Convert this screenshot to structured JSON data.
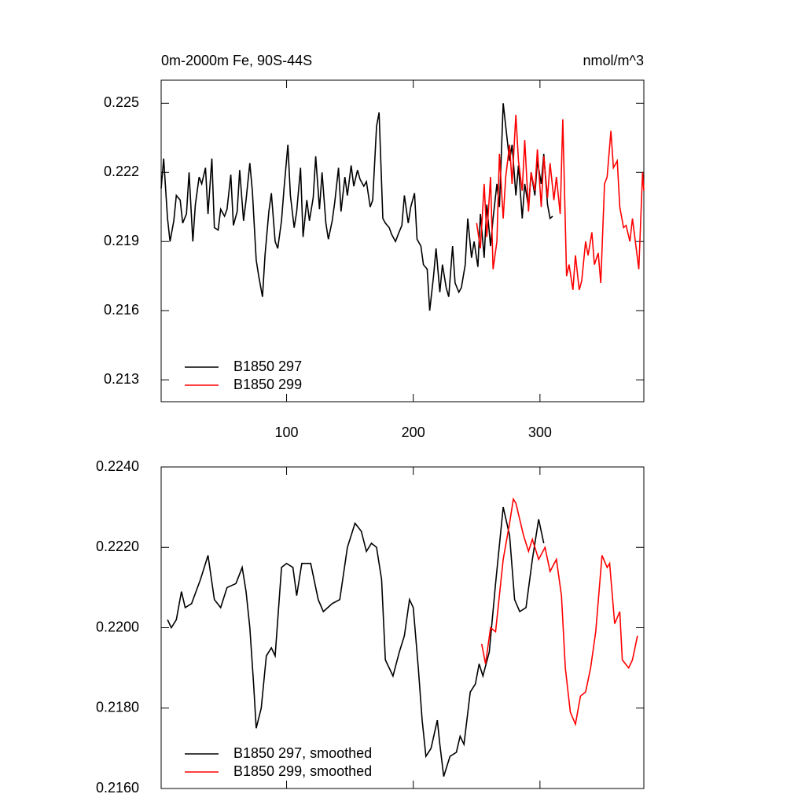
{
  "chart_data": [
    {
      "type": "line",
      "title": "0m-2000m Fe, 90S-44S",
      "units": "nmol/m^3",
      "xlim": [
        1,
        382
      ],
      "xticks": [
        100,
        200,
        300
      ],
      "ylim": [
        0.21205,
        0.226
      ],
      "yticks": [
        0.213,
        0.216,
        0.219,
        0.222,
        0.225
      ],
      "series": [
        {
          "name": "B1850 297",
          "color": "#000000",
          "x": [
            1,
            3,
            6,
            8,
            11,
            13,
            16,
            18,
            21,
            23,
            26,
            28,
            31,
            33,
            36,
            38,
            41,
            43,
            46,
            48,
            51,
            53,
            56,
            58,
            61,
            63,
            66,
            68,
            71,
            73,
            76,
            78,
            81,
            83,
            86,
            88,
            91,
            93,
            96,
            98,
            101,
            103,
            106,
            108,
            111,
            113,
            116,
            118,
            121,
            123,
            126,
            128,
            131,
            133,
            136,
            138,
            141,
            143,
            146,
            148,
            151,
            153,
            156,
            158,
            161,
            163,
            166,
            168,
            171,
            173,
            176,
            178,
            181,
            183,
            186,
            188,
            191,
            193,
            196,
            198,
            201,
            203,
            206,
            208,
            211,
            213,
            216,
            218,
            221,
            223,
            226,
            228,
            231,
            233,
            236,
            238,
            241,
            243,
            246,
            248,
            251,
            253,
            256,
            258,
            261,
            263,
            266,
            268,
            271,
            273,
            276,
            278,
            281,
            283,
            286,
            288,
            291,
            293,
            296,
            298,
            301,
            303,
            306,
            308,
            310
          ],
          "values": [
            0.2213,
            0.2226,
            0.22,
            0.219,
            0.2199,
            0.221,
            0.2208,
            0.2198,
            0.2202,
            0.222,
            0.219,
            0.2206,
            0.2218,
            0.2215,
            0.2222,
            0.2202,
            0.2226,
            0.2196,
            0.2195,
            0.2204,
            0.2201,
            0.2204,
            0.2219,
            0.2197,
            0.2203,
            0.2221,
            0.2199,
            0.2208,
            0.2224,
            0.2212,
            0.2182,
            0.2175,
            0.2166,
            0.2184,
            0.2203,
            0.2211,
            0.219,
            0.2187,
            0.2199,
            0.2213,
            0.2232,
            0.221,
            0.2196,
            0.2203,
            0.2222,
            0.2192,
            0.2208,
            0.2199,
            0.2209,
            0.2227,
            0.2204,
            0.222,
            0.2198,
            0.2191,
            0.2199,
            0.2207,
            0.2222,
            0.2203,
            0.2218,
            0.221,
            0.2223,
            0.2214,
            0.2221,
            0.2217,
            0.2214,
            0.2216,
            0.2205,
            0.2208,
            0.224,
            0.2246,
            0.22,
            0.2198,
            0.2196,
            0.2193,
            0.219,
            0.2193,
            0.2197,
            0.221,
            0.2198,
            0.2205,
            0.2211,
            0.2191,
            0.2188,
            0.218,
            0.2178,
            0.216,
            0.2175,
            0.2187,
            0.2168,
            0.218,
            0.217,
            0.2166,
            0.2188,
            0.2172,
            0.2168,
            0.217,
            0.218,
            0.22,
            0.2183,
            0.219,
            0.2179,
            0.2202,
            0.2183,
            0.2206,
            0.2188,
            0.22,
            0.2215,
            0.2205,
            0.225,
            0.224,
            0.2225,
            0.2232,
            0.221,
            0.2223,
            0.22,
            0.2215,
            0.2205,
            0.222,
            0.221,
            0.2225,
            0.2215,
            0.2228,
            0.2206,
            0.22,
            0.2201
          ]
        },
        {
          "name": "B1850 299",
          "color": "#ff0000",
          "x": [
            250,
            253,
            256,
            258,
            261,
            263,
            266,
            268,
            271,
            273,
            276,
            278,
            281,
            283,
            286,
            288,
            291,
            293,
            296,
            298,
            301,
            303,
            306,
            308,
            311,
            313,
            316,
            318,
            321,
            323,
            326,
            328,
            331,
            333,
            336,
            338,
            341,
            343,
            346,
            348,
            351,
            353,
            356,
            358,
            361,
            363,
            366,
            368,
            371,
            373,
            376,
            378,
            381,
            382
          ],
          "values": [
            0.2198,
            0.2187,
            0.2215,
            0.2192,
            0.2218,
            0.2178,
            0.219,
            0.2228,
            0.22,
            0.2218,
            0.2232,
            0.2215,
            0.2245,
            0.2225,
            0.2212,
            0.2234,
            0.2203,
            0.222,
            0.2212,
            0.223,
            0.2205,
            0.2227,
            0.2209,
            0.2224,
            0.2208,
            0.2218,
            0.2202,
            0.2243,
            0.2175,
            0.218,
            0.2169,
            0.2184,
            0.2169,
            0.2173,
            0.219,
            0.2184,
            0.2194,
            0.218,
            0.2185,
            0.2172,
            0.2215,
            0.2218,
            0.2238,
            0.2222,
            0.2225,
            0.2205,
            0.2196,
            0.2197,
            0.219,
            0.22,
            0.2187,
            0.2178,
            0.222,
            0.2212
          ]
        }
      ]
    },
    {
      "type": "line",
      "xlim": [
        1,
        382
      ],
      "xticks": [
        100,
        200,
        300
      ],
      "ylim": [
        0.216,
        0.224
      ],
      "yticks": [
        {
          "value": 0.216,
          "label": "0.2160"
        },
        {
          "value": 0.218,
          "label": "0.2180"
        },
        {
          "value": 0.22,
          "label": "0.2200"
        },
        {
          "value": 0.222,
          "label": "0.2220"
        },
        {
          "value": 0.224,
          "label": "0.2240"
        }
      ],
      "series": [
        {
          "name": "B1850 297, smoothed",
          "color": "#000000",
          "x": [
            6,
            9,
            13,
            17,
            20,
            25,
            32,
            38,
            43,
            48,
            53,
            60,
            65,
            68,
            71,
            74,
            76,
            80,
            84,
            88,
            91,
            96,
            100,
            105,
            108,
            112,
            119,
            125,
            129,
            136,
            142,
            148,
            154,
            159,
            163,
            167,
            171,
            175,
            178,
            184,
            189,
            193,
            197,
            200,
            204,
            207,
            210,
            214,
            219,
            221,
            224,
            229,
            234,
            237,
            240,
            245,
            249,
            252,
            255,
            260,
            265,
            271,
            276,
            280,
            284,
            289,
            294,
            299,
            303
          ],
          "values": [
            0.2202,
            0.22,
            0.2202,
            0.2209,
            0.2205,
            0.2206,
            0.2212,
            0.2218,
            0.2207,
            0.2205,
            0.221,
            0.2211,
            0.2215,
            0.2209,
            0.22,
            0.2186,
            0.2175,
            0.218,
            0.2193,
            0.2195,
            0.2193,
            0.2215,
            0.2216,
            0.2215,
            0.2208,
            0.2216,
            0.2216,
            0.2207,
            0.2204,
            0.2206,
            0.2207,
            0.222,
            0.2226,
            0.2224,
            0.2219,
            0.2221,
            0.222,
            0.2212,
            0.2192,
            0.2188,
            0.2194,
            0.2198,
            0.2207,
            0.2205,
            0.219,
            0.2177,
            0.2168,
            0.217,
            0.2177,
            0.2171,
            0.2163,
            0.2168,
            0.2169,
            0.2173,
            0.2171,
            0.2184,
            0.2186,
            0.2191,
            0.2188,
            0.2194,
            0.2211,
            0.223,
            0.2223,
            0.2207,
            0.2204,
            0.2205,
            0.2217,
            0.2227,
            0.2221
          ]
        },
        {
          "name": "B1850 299, smoothed",
          "color": "#ff0000",
          "x": [
            254,
            257,
            261,
            265,
            271,
            276,
            279,
            281,
            287,
            291,
            294,
            299,
            304,
            308,
            313,
            317,
            320,
            324,
            328,
            332,
            336,
            340,
            344,
            349,
            353,
            355,
            359,
            363,
            365,
            370,
            373,
            377
          ],
          "values": [
            0.2196,
            0.2191,
            0.22,
            0.2199,
            0.2217,
            0.2226,
            0.2232,
            0.2231,
            0.2223,
            0.2219,
            0.2222,
            0.2217,
            0.222,
            0.2214,
            0.2217,
            0.2208,
            0.219,
            0.2179,
            0.2176,
            0.2183,
            0.2184,
            0.219,
            0.2199,
            0.2218,
            0.2215,
            0.2216,
            0.2201,
            0.2204,
            0.2192,
            0.219,
            0.2192,
            0.2198
          ]
        }
      ]
    }
  ]
}
